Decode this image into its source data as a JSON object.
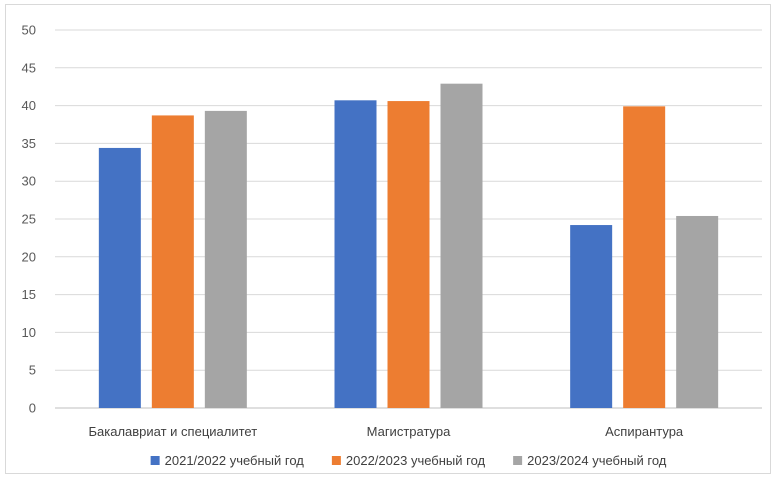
{
  "chart_data": {
    "type": "bar",
    "categories": [
      "Бакалавриат и специалитет",
      "Магистратура",
      "Аспирантура"
    ],
    "series": [
      {
        "name": "2021/2022 учебный год",
        "color": "#4472c4",
        "values": [
          34.4,
          40.7,
          24.2
        ]
      },
      {
        "name": "2022/2023 учебный год",
        "color": "#ed7d31",
        "values": [
          38.7,
          40.6,
          39.9
        ]
      },
      {
        "name": "2023/2024 учебный год",
        "color": "#a5a5a5",
        "values": [
          39.3,
          42.9,
          25.4
        ]
      }
    ],
    "ylim": [
      0,
      50
    ],
    "yticks": [
      0,
      5,
      10,
      15,
      20,
      25,
      30,
      35,
      40,
      45,
      50
    ],
    "grid": true,
    "legend": "bottom",
    "title": "",
    "xlabel": "",
    "ylabel": ""
  }
}
